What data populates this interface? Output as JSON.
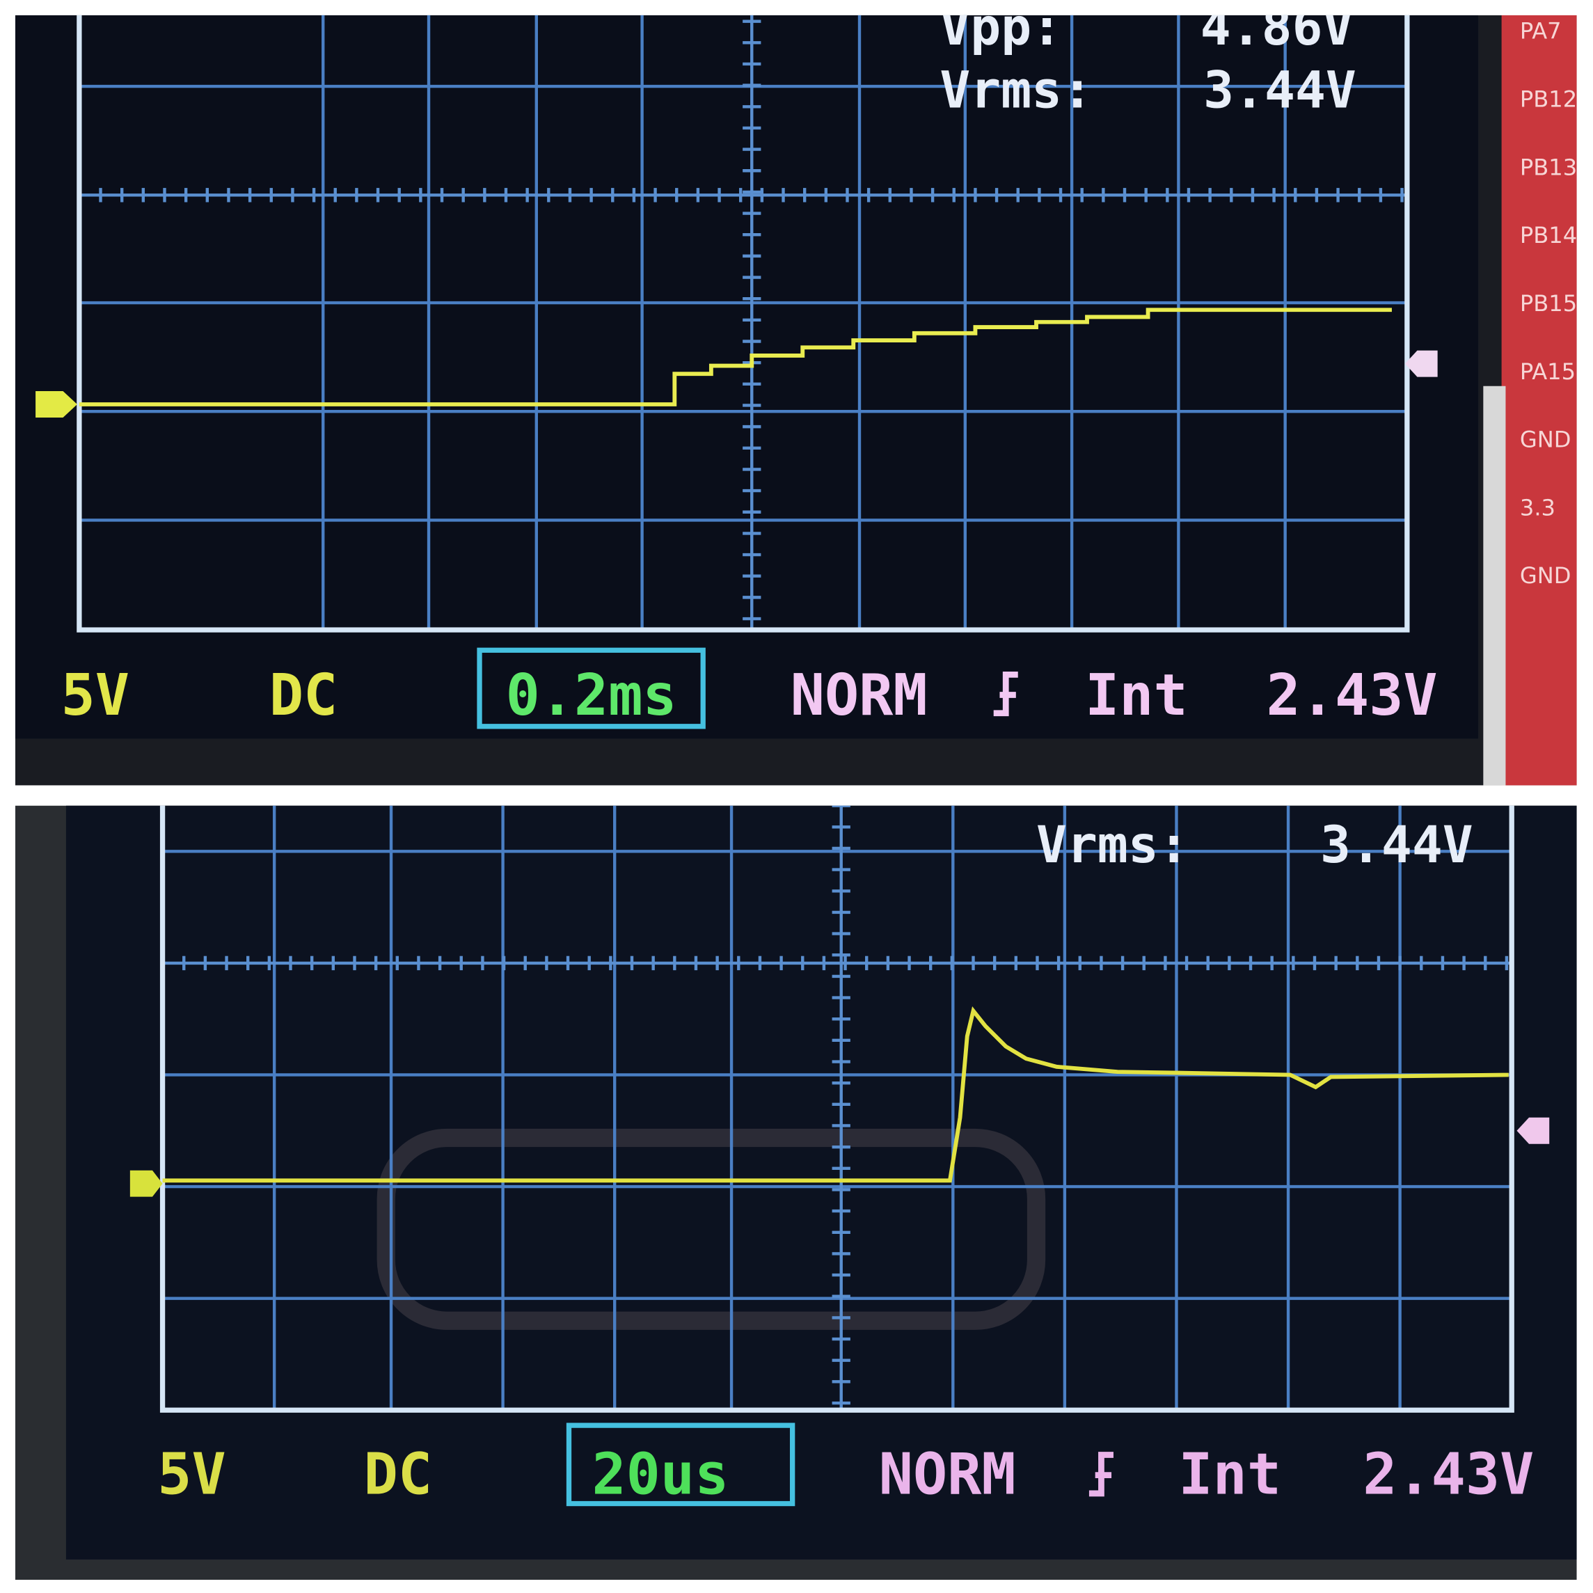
{
  "panels": [
    {
      "measurements": [
        {
          "label": "Vpp:",
          "value": "4.86V"
        },
        {
          "label": "Vrms:",
          "value": "3.44V"
        }
      ],
      "status": {
        "volts_div": "5V",
        "coupling": "DC",
        "time_div": "0.2ms",
        "trigger_mode": "NORM",
        "trigger_source": "Int",
        "trigger_level": "2.43V"
      },
      "pin_labels": [
        "PA7",
        "PB12",
        "PB13",
        "PB14",
        "PB15",
        "PA15",
        "GND",
        "3.3",
        "GND"
      ]
    },
    {
      "measurements": [
        {
          "label": "Vrms:",
          "value": "3.44V"
        }
      ],
      "status": {
        "volts_div": "5V",
        "coupling": "DC",
        "time_div": "20us",
        "trigger_mode": "NORM",
        "trigger_source": "Int",
        "trigger_level": "2.43V"
      }
    }
  ]
}
